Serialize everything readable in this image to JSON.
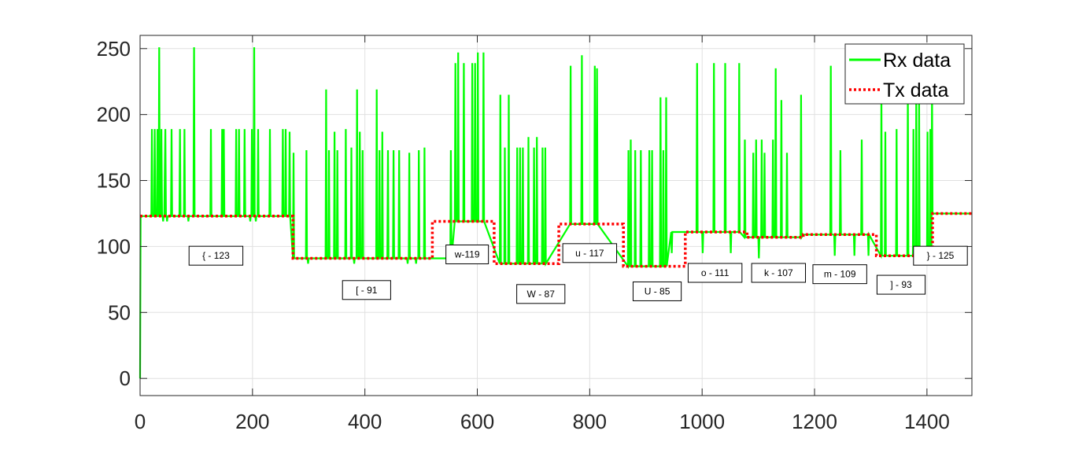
{
  "chart_data": {
    "type": "line",
    "title": "",
    "xlabel": "",
    "ylabel": "",
    "xlim": [
      0,
      1480
    ],
    "ylim": [
      -13,
      260
    ],
    "x_ticks": [
      0,
      200,
      400,
      600,
      800,
      1000,
      1200,
      1400
    ],
    "y_ticks": [
      0,
      50,
      100,
      150,
      200,
      250
    ],
    "grid": true,
    "legend_location": "top-right",
    "colors": {
      "rx": "#00ff00",
      "tx": "#ff0000",
      "grid": "#e0e0e0",
      "axis": "#262626"
    },
    "series": [
      {
        "name": "Rx data",
        "style": "solid",
        "x": [
          0,
          1,
          2,
          20,
          21,
          22,
          25,
          26,
          27,
          30,
          31,
          32,
          33,
          34,
          35,
          37,
          38,
          39,
          40,
          41,
          42,
          43,
          45,
          46,
          47,
          48,
          49,
          55,
          56,
          57,
          70,
          71,
          72,
          78,
          79,
          80,
          85,
          86,
          87,
          95,
          96,
          97,
          125,
          126,
          127,
          145,
          146,
          147,
          148,
          149,
          150,
          170,
          171,
          172,
          175,
          176,
          177,
          185,
          186,
          187,
          195,
          196,
          197,
          198,
          199,
          200,
          202,
          203,
          204,
          205,
          206,
          207,
          209,
          210,
          211,
          230,
          231,
          232,
          253,
          254,
          255,
          258,
          259,
          260,
          265,
          266,
          267,
          272,
          273,
          274,
          295,
          296,
          297,
          298,
          299,
          300,
          330,
          331,
          332,
          335,
          336,
          337,
          345,
          346,
          347,
          350,
          351,
          352,
          365,
          366,
          367,
          375,
          376,
          377,
          380,
          381,
          382,
          385,
          386,
          387,
          390,
          391,
          392,
          395,
          396,
          397,
          420,
          421,
          422,
          425,
          426,
          427,
          430,
          431,
          432,
          440,
          441,
          442,
          450,
          451,
          452,
          460,
          461,
          462,
          475,
          476,
          477,
          478,
          479,
          480,
          490,
          491,
          492,
          495,
          496,
          497,
          505,
          506,
          507,
          552,
          553,
          554,
          560,
          561,
          562,
          565,
          566,
          567,
          575,
          576,
          577,
          590,
          591,
          592,
          595,
          596,
          597,
          600,
          601,
          602,
          610,
          611,
          612,
          640,
          641,
          642,
          648,
          649,
          650,
          655,
          656,
          657,
          670,
          671,
          672,
          675,
          676,
          677,
          680,
          681,
          682,
          690,
          691,
          692,
          700,
          701,
          702,
          705,
          706,
          707,
          715,
          716,
          717,
          720,
          721,
          722,
          765,
          766,
          767,
          770,
          771,
          772,
          785,
          786,
          787,
          790,
          791,
          792,
          808,
          809,
          810,
          812,
          813,
          814,
          868,
          869,
          870,
          872,
          873,
          874,
          880,
          881,
          882,
          890,
          891,
          892,
          905,
          906,
          907,
          910,
          911,
          912,
          925,
          926,
          927,
          930,
          931,
          932,
          935,
          936,
          937,
          945,
          946,
          947,
          990,
          991,
          992,
          1000,
          1001,
          1002,
          1020,
          1021,
          1022,
          1040,
          1041,
          1042,
          1050,
          1051,
          1052,
          1065,
          1066,
          1067,
          1075,
          1076,
          1077,
          1090,
          1091,
          1092,
          1095,
          1096,
          1097,
          1100,
          1101,
          1102,
          1105,
          1106,
          1107,
          1110,
          1111,
          1112,
          1125,
          1126,
          1127,
          1130,
          1131,
          1132,
          1140,
          1141,
          1142,
          1150,
          1151,
          1152,
          1160,
          1161,
          1162,
          1175,
          1176,
          1177,
          1180,
          1181,
          1182,
          1228,
          1229,
          1230,
          1235,
          1236,
          1237,
          1245,
          1246,
          1247,
          1255,
          1256,
          1257,
          1265,
          1266,
          1267,
          1270,
          1271,
          1272,
          1283,
          1284,
          1285,
          1290,
          1291,
          1292,
          1295,
          1296,
          1297,
          1318,
          1319,
          1320,
          1325,
          1326,
          1327,
          1345,
          1346,
          1347,
          1365,
          1366,
          1367,
          1375,
          1376,
          1377,
          1380,
          1381,
          1382,
          1385,
          1386,
          1387,
          1400,
          1401,
          1402,
          1405,
          1406,
          1407,
          1408,
          1409,
          1410,
          1480
        ],
        "y": [
          0,
          123,
          123,
          123,
          189,
          123,
          123,
          189,
          123,
          123,
          189,
          123,
          123,
          251,
          123,
          123,
          189,
          123,
          123,
          119,
          123,
          123,
          189,
          123,
          123,
          119,
          123,
          123,
          189,
          123,
          123,
          189,
          123,
          123,
          189,
          123,
          123,
          119,
          123,
          123,
          251,
          123,
          123,
          189,
          123,
          123,
          189,
          123,
          123,
          189,
          123,
          123,
          189,
          123,
          123,
          189,
          123,
          123,
          189,
          123,
          123,
          119,
          123,
          123,
          189,
          123,
          123,
          251,
          123,
          123,
          119,
          123,
          123,
          189,
          123,
          123,
          189,
          123,
          123,
          189,
          123,
          123,
          189,
          123,
          123,
          187,
          123,
          91,
          171,
          91,
          91,
          173,
          91,
          91,
          87,
          91,
          91,
          219,
          91,
          91,
          173,
          91,
          91,
          187,
          91,
          91,
          173,
          91,
          91,
          189,
          91,
          91,
          175,
          91,
          91,
          87,
          91,
          91,
          219,
          91,
          91,
          187,
          91,
          91,
          173,
          91,
          91,
          219,
          91,
          91,
          173,
          91,
          91,
          187,
          91,
          91,
          173,
          91,
          91,
          173,
          91,
          91,
          173,
          91,
          91,
          87,
          91,
          91,
          171,
          91,
          91,
          87,
          91,
          91,
          173,
          91,
          91,
          175,
          91,
          91,
          173,
          91,
          119,
          239,
          119,
          119,
          247,
          119,
          119,
          239,
          119,
          119,
          239,
          119,
          119,
          239,
          119,
          119,
          247,
          119,
          119,
          247,
          119,
          87,
          215,
          87,
          87,
          175,
          87,
          87,
          215,
          87,
          87,
          175,
          87,
          87,
          175,
          87,
          87,
          175,
          87,
          87,
          183,
          87,
          87,
          175,
          87,
          87,
          183,
          87,
          87,
          175,
          87,
          87,
          175,
          87,
          117,
          237,
          117,
          117,
          117,
          117,
          117,
          245,
          117,
          117,
          117,
          117,
          117,
          237,
          117,
          117,
          235,
          117,
          85,
          173,
          85,
          85,
          181,
          85,
          85,
          173,
          85,
          85,
          173,
          85,
          85,
          173,
          85,
          85,
          173,
          85,
          85,
          213,
          85,
          85,
          173,
          85,
          85,
          213,
          85,
          111,
          95,
          111,
          111,
          239,
          111,
          111,
          95,
          111,
          111,
          239,
          111,
          111,
          239,
          111,
          111,
          95,
          111,
          111,
          239,
          111,
          107,
          181,
          107,
          107,
          171,
          107,
          107,
          181,
          107,
          107,
          91,
          107,
          107,
          181,
          107,
          107,
          171,
          107,
          107,
          181,
          107,
          107,
          235,
          107,
          107,
          211,
          107,
          107,
          171,
          107,
          107,
          107,
          107,
          107,
          215,
          107,
          109,
          109,
          109,
          109,
          237,
          109,
          109,
          93,
          109,
          109,
          173,
          109,
          109,
          109,
          109,
          109,
          109,
          109,
          109,
          93,
          109,
          109,
          181,
          109,
          109,
          109,
          109,
          109,
          93,
          109,
          93,
          219,
          93,
          93,
          187,
          93,
          93,
          189,
          93,
          93,
          221,
          93,
          93,
          189,
          93,
          93,
          221,
          93,
          93,
          211,
          93,
          93,
          187,
          93,
          93,
          189,
          93,
          93,
          221,
          125,
          125
        ]
      },
      {
        "name": "Tx data",
        "style": "dotted",
        "x": [
          0,
          272,
          272,
          520,
          520,
          630,
          630,
          745,
          745,
          860,
          860,
          970,
          970,
          1080,
          1080,
          1180,
          1180,
          1310,
          1310,
          1410,
          1410,
          1480
        ],
        "y": [
          123,
          123,
          91,
          91,
          119,
          119,
          87,
          87,
          117,
          117,
          85,
          85,
          111,
          111,
          107,
          107,
          109,
          109,
          93,
          93,
          125,
          125
        ]
      }
    ],
    "annotations": [
      {
        "text": "{ - 123",
        "x": 135,
        "y": 93
      },
      {
        "text": "[ - 91",
        "x": 403,
        "y": 67
      },
      {
        "text": "w-119",
        "x": 582,
        "y": 94
      },
      {
        "text": "W - 87",
        "x": 713,
        "y": 64
      },
      {
        "text": "u - 117",
        "x": 800,
        "y": 95
      },
      {
        "text": "U - 85",
        "x": 920,
        "y": 66
      },
      {
        "text": "o - 111",
        "x": 1023,
        "y": 80
      },
      {
        "text": "k - 107",
        "x": 1136,
        "y": 80
      },
      {
        "text": "m - 109",
        "x": 1245,
        "y": 79
      },
      {
        "text": "] - 93",
        "x": 1354,
        "y": 71
      },
      {
        "text": "} - 125",
        "x": 1424,
        "y": 93
      }
    ]
  }
}
